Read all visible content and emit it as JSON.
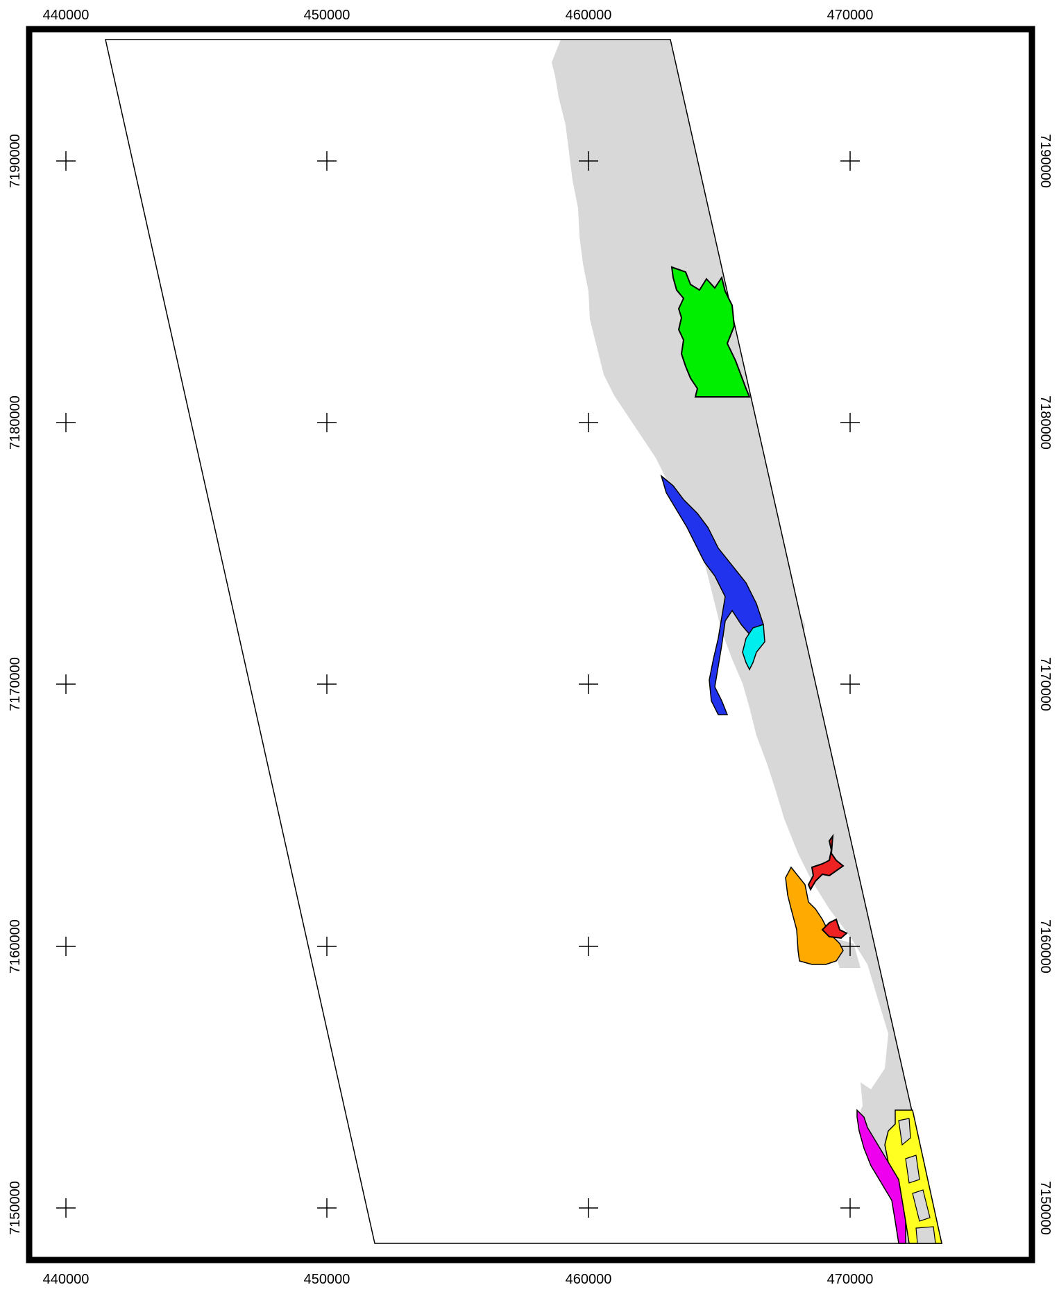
{
  "map": {
    "x_ticks": [
      "440000",
      "450000",
      "460000",
      "470000"
    ],
    "y_ticks": [
      "7190000",
      "7180000",
      "7170000",
      "7160000",
      "7150000"
    ],
    "colors": {
      "frame": "#000000",
      "background": "#ffffff",
      "land": "#d8d8d8",
      "area_green": "#00ee00",
      "area_blue": "#2233ee",
      "area_cyan": "#00eeee",
      "area_orange": "#ffaa00",
      "area_red": "#ee2222",
      "area_magenta": "#ee00ee",
      "area_yellow": "#ffff22"
    },
    "icons": [
      "crosshair-icon"
    ]
  }
}
